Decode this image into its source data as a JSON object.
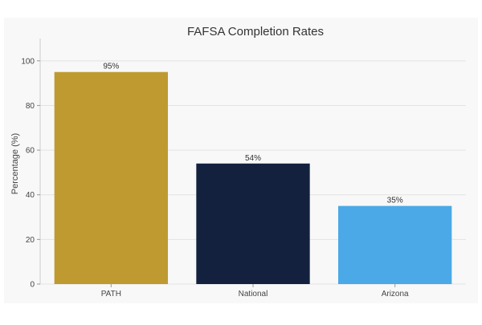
{
  "chart_data": {
    "type": "bar",
    "title": "FAFSA Completion Rates",
    "xlabel": "",
    "ylabel": "Percentage (%)",
    "categories": [
      "PATH",
      "National",
      "Arizona"
    ],
    "values": [
      95,
      54,
      35
    ],
    "data_labels": [
      "95%",
      "54%",
      "35%"
    ],
    "colors": [
      "#BF9A30",
      "#13213E",
      "#4AA9E6"
    ],
    "ylim": [
      0,
      110
    ],
    "yticks": [
      0,
      20,
      40,
      60,
      80,
      100
    ],
    "grid": true,
    "legend": "none"
  }
}
